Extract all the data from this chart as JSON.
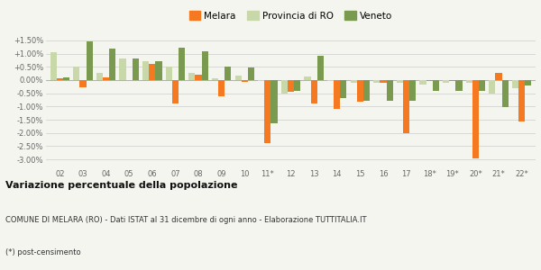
{
  "years": [
    "02",
    "03",
    "04",
    "05",
    "06",
    "07",
    "08",
    "09",
    "10",
    "11*",
    "12",
    "13",
    "14",
    "15",
    "16",
    "17",
    "18*",
    "19*",
    "20*",
    "21*",
    "22*"
  ],
  "melara": [
    0.05,
    -0.28,
    0.1,
    0.0,
    0.62,
    -0.88,
    0.2,
    -0.62,
    -0.08,
    -2.38,
    -0.45,
    -0.88,
    -1.08,
    -0.82,
    -0.1,
    -2.02,
    -0.05,
    -0.05,
    -2.95,
    0.28,
    -1.58
  ],
  "provincia_ro": [
    1.05,
    0.5,
    0.28,
    0.8,
    0.72,
    0.52,
    0.28,
    0.05,
    0.18,
    -0.05,
    -0.52,
    0.15,
    -0.05,
    -0.12,
    -0.12,
    -0.12,
    -0.18,
    -0.12,
    -0.12,
    -0.52,
    -0.3
  ],
  "veneto": [
    0.1,
    1.45,
    1.2,
    0.8,
    0.72,
    1.22,
    1.08,
    0.52,
    0.48,
    -1.62,
    -0.42,
    0.9,
    -0.68,
    -0.78,
    -0.78,
    -0.78,
    -0.42,
    -0.42,
    -0.42,
    -1.02,
    -0.22
  ],
  "melara_color": "#f47920",
  "provincia_color": "#c8d8a8",
  "veneto_color": "#7a9a50",
  "bg_color": "#f5f5f0",
  "title_bold": "Variazione percentuale della popolazione",
  "subtitle": "COMUNE DI MELARA (RO) - Dati ISTAT al 31 dicembre di ogni anno - Elaborazione TUTTITALIA.IT",
  "footnote": "(*) post-censimento",
  "ylim": [
    -3.3,
    1.8
  ],
  "yticks": [
    -3.0,
    -2.5,
    -2.0,
    -1.5,
    -1.0,
    -0.5,
    0.0,
    0.5,
    1.0,
    1.5
  ],
  "ytick_labels": [
    "-3.00%",
    "-2.50%",
    "-2.00%",
    "-1.50%",
    "-1.00%",
    "-0.50%",
    "0.00%",
    "+0.50%",
    "+1.00%",
    "+1.50%"
  ]
}
